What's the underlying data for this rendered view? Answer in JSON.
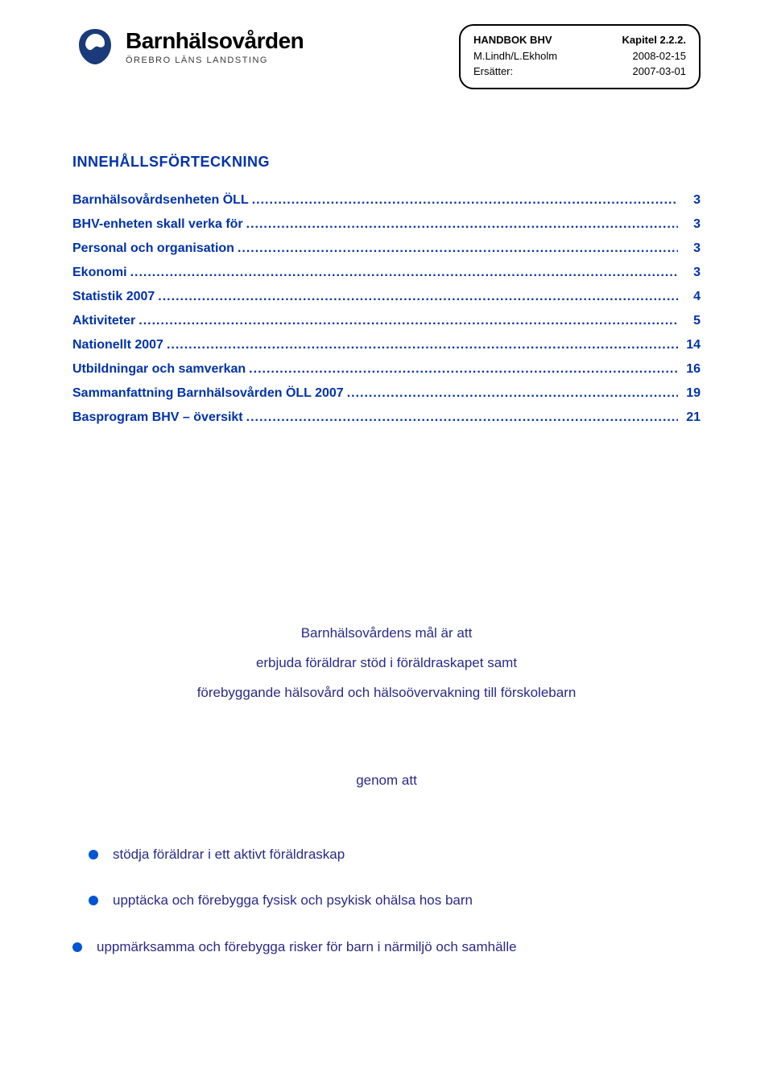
{
  "colors": {
    "link": "#0033aa",
    "body_text": "#2a2a8a",
    "bullet": "#0055d4",
    "black": "#000000",
    "logo_blue": "#1a3a7a"
  },
  "header": {
    "logo_title": "Barnhälsovården",
    "logo_sub": "ÖREBRO LÄNS LANDSTING",
    "box": {
      "rows": [
        {
          "left": "HANDBOK BHV",
          "right": "Kapitel 2.2.2."
        },
        {
          "left": "M.Lindh/L.Ekholm",
          "right": "2008-02-15"
        },
        {
          "left": "Ersätter:",
          "right": "2007-03-01"
        }
      ]
    }
  },
  "toc": {
    "title": "INNEHÅLLSFÖRTECKNING",
    "items": [
      {
        "label": "Barnhälsovårdsenheten ÖLL",
        "page": "3"
      },
      {
        "label": "BHV-enheten skall verka för",
        "page": "3"
      },
      {
        "label": "Personal och organisation",
        "page": "3"
      },
      {
        "label": "Ekonomi",
        "page": "3"
      },
      {
        "label": "Statistik 2007",
        "page": "4"
      },
      {
        "label": "Aktiviteter",
        "page": "5"
      },
      {
        "label": "Nationellt 2007",
        "page": "14"
      },
      {
        "label": "Utbildningar och samverkan",
        "page": "16"
      },
      {
        "label": "Sammanfattning Barnhälsovården ÖLL 2007",
        "page": "19"
      },
      {
        "label": "Basprogram BHV – översikt",
        "page": "21"
      }
    ]
  },
  "mission": {
    "line1": "Barnhälsovårdens mål är att",
    "line2": "erbjuda föräldrar stöd i föräldraskapet samt",
    "line3": "förebyggande hälsovård och hälsoövervakning till förskolebarn"
  },
  "genom": "genom att",
  "bullets": [
    "stödja föräldrar i ett aktivt föräldraskap",
    "upptäcka och förebygga fysisk och psykisk ohälsa hos barn",
    "uppmärksamma och förebygga risker för barn i närmiljö och samhälle"
  ]
}
